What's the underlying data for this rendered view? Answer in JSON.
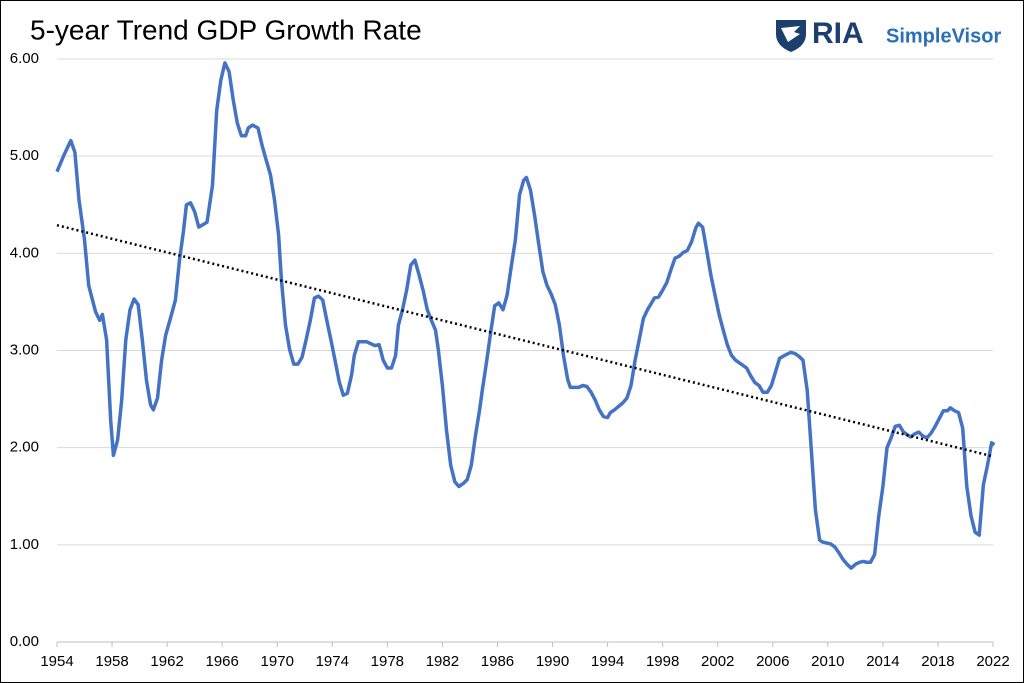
{
  "chart_data": {
    "type": "line",
    "title": "5-year Trend GDP Growth Rate",
    "logo": {
      "brand": "RIA",
      "product": "SimpleVisor"
    },
    "xlim": [
      1954,
      2022
    ],
    "xticks": [
      1954,
      1958,
      1962,
      1966,
      1970,
      1974,
      1978,
      1982,
      1986,
      1990,
      1994,
      1998,
      2002,
      2006,
      2010,
      2014,
      2018,
      2022
    ],
    "ylim": [
      0,
      6
    ],
    "yticks": [
      {
        "value": 0,
        "label": "0.00"
      },
      {
        "value": 1,
        "label": "1.00"
      },
      {
        "value": 2,
        "label": "2.00"
      },
      {
        "value": 3,
        "label": "3.00"
      },
      {
        "value": 4,
        "label": "4.00"
      },
      {
        "value": 5,
        "label": "5.00"
      },
      {
        "value": 6,
        "label": "6.00"
      }
    ],
    "grid": true,
    "series": [
      {
        "color": "#4472c4",
        "style": "solid",
        "x": [
          1954.0,
          1954.5,
          1955.0,
          1955.3,
          1955.6,
          1956.0,
          1956.3,
          1956.8,
          1957.1,
          1957.3,
          1957.6,
          1957.9,
          1958.1,
          1958.4,
          1958.7,
          1959.0,
          1959.3,
          1959.6,
          1959.9,
          1960.2,
          1960.5,
          1960.8,
          1961.0,
          1961.3,
          1961.6,
          1961.9,
          1962.2,
          1962.6,
          1962.9,
          1963.2,
          1963.4,
          1963.7,
          1964.0,
          1964.3,
          1964.9,
          1965.3,
          1965.6,
          1965.9,
          1966.2,
          1966.5,
          1966.8,
          1967.1,
          1967.4,
          1967.7,
          1967.9,
          1968.2,
          1968.6,
          1968.9,
          1969.2,
          1969.5,
          1969.8,
          1970.1,
          1970.3,
          1970.6,
          1970.9,
          1971.2,
          1971.5,
          1971.8,
          1972.1,
          1972.4,
          1972.7,
          1973.0,
          1973.3,
          1973.6,
          1973.9,
          1974.2,
          1974.5,
          1974.8,
          1975.1,
          1975.4,
          1975.6,
          1975.9,
          1976.5,
          1977.1,
          1977.4,
          1977.7,
          1978.0,
          1978.3,
          1978.6,
          1978.8,
          1979.1,
          1979.4,
          1979.7,
          1980.0,
          1980.3,
          1980.6,
          1980.9,
          1981.2,
          1981.5,
          1981.7,
          1982.0,
          1982.3,
          1982.6,
          1982.9,
          1983.2,
          1983.5,
          1983.8,
          1984.1,
          1984.4,
          1984.7,
          1984.9,
          1985.2,
          1985.5,
          1985.8,
          1986.1,
          1986.4,
          1986.7,
          1987.0,
          1987.3,
          1987.6,
          1987.9,
          1988.1,
          1988.4,
          1988.7,
          1989.0,
          1989.3,
          1989.6,
          1989.9,
          1990.2,
          1990.5,
          1990.8,
          1991.1,
          1991.3,
          1991.9,
          1992.2,
          1992.5,
          1992.8,
          1993.1,
          1993.4,
          1993.7,
          1994.0,
          1994.2,
          1994.5,
          1995.1,
          1995.4,
          1995.7,
          1996.0,
          1996.3,
          1996.6,
          1996.9,
          1997.2,
          1997.4,
          1997.7,
          1998.0,
          1998.3,
          1998.6,
          1998.9,
          1999.2,
          1999.5,
          1999.8,
          2000.1,
          2000.4,
          2000.6,
          2000.9,
          2001.2,
          2001.5,
          2001.8,
          2002.1,
          2002.4,
          2002.7,
          2003.0,
          2003.3,
          2003.8,
          2004.1,
          2004.4,
          2004.7,
          2005.0,
          2005.3,
          2005.6,
          2005.9,
          2006.2,
          2006.5,
          2007.0,
          2007.3,
          2007.6,
          2007.9,
          2008.2,
          2008.5,
          2008.8,
          2009.1,
          2009.4,
          2009.6,
          2009.9,
          2010.2,
          2010.5,
          2010.8,
          2011.1,
          2011.4,
          2011.7,
          2012.0,
          2012.3,
          2012.6,
          2012.8,
          2013.1,
          2013.4,
          2013.7,
          2014.0,
          2014.3,
          2014.6,
          2014.9,
          2015.2,
          2015.5,
          2015.8,
          2016.0,
          2016.3,
          2016.6,
          2016.9,
          2017.2,
          2017.5,
          2017.8,
          2018.1,
          2018.4,
          2018.7,
          2018.9,
          2019.2,
          2019.5,
          2019.8,
          2020.1,
          2020.4,
          2020.7,
          2021.0,
          2021.3,
          2021.6,
          2021.9,
          2022.1
        ],
        "values": [
          4.84,
          5.01,
          5.16,
          5.04,
          4.55,
          4.14,
          3.67,
          3.4,
          3.31,
          3.37,
          3.11,
          2.28,
          1.92,
          2.08,
          2.49,
          3.11,
          3.42,
          3.53,
          3.47,
          3.11,
          2.69,
          2.44,
          2.39,
          2.51,
          2.9,
          3.16,
          3.31,
          3.52,
          3.93,
          4.24,
          4.5,
          4.52,
          4.43,
          4.27,
          4.32,
          4.7,
          5.47,
          5.78,
          5.96,
          5.87,
          5.58,
          5.34,
          5.21,
          5.21,
          5.29,
          5.32,
          5.29,
          5.11,
          4.96,
          4.81,
          4.55,
          4.19,
          3.73,
          3.26,
          3.01,
          2.86,
          2.86,
          2.93,
          3.11,
          3.31,
          3.54,
          3.56,
          3.52,
          3.31,
          3.11,
          2.9,
          2.68,
          2.54,
          2.56,
          2.75,
          2.95,
          3.09,
          3.09,
          3.05,
          3.06,
          2.9,
          2.82,
          2.82,
          2.95,
          3.26,
          3.42,
          3.62,
          3.88,
          3.93,
          3.78,
          3.62,
          3.42,
          3.31,
          3.21,
          3.01,
          2.64,
          2.18,
          1.82,
          1.65,
          1.6,
          1.63,
          1.67,
          1.82,
          2.12,
          2.39,
          2.59,
          2.88,
          3.18,
          3.46,
          3.49,
          3.42,
          3.57,
          3.86,
          4.14,
          4.6,
          4.75,
          4.78,
          4.65,
          4.39,
          4.09,
          3.81,
          3.67,
          3.58,
          3.47,
          3.26,
          2.95,
          2.7,
          2.62,
          2.62,
          2.64,
          2.63,
          2.57,
          2.49,
          2.39,
          2.32,
          2.31,
          2.36,
          2.39,
          2.46,
          2.51,
          2.64,
          2.9,
          3.11,
          3.33,
          3.42,
          3.49,
          3.54,
          3.55,
          3.62,
          3.7,
          3.83,
          3.95,
          3.97,
          4.01,
          4.03,
          4.12,
          4.26,
          4.31,
          4.27,
          4.03,
          3.78,
          3.57,
          3.37,
          3.21,
          3.06,
          2.95,
          2.9,
          2.85,
          2.82,
          2.74,
          2.67,
          2.64,
          2.57,
          2.57,
          2.64,
          2.78,
          2.92,
          2.96,
          2.98,
          2.97,
          2.94,
          2.9,
          2.59,
          1.98,
          1.36,
          1.05,
          1.03,
          1.02,
          1.01,
          0.98,
          0.92,
          0.85,
          0.8,
          0.76,
          0.8,
          0.82,
          0.83,
          0.82,
          0.82,
          0.9,
          1.3,
          1.6,
          2.0,
          2.1,
          2.22,
          2.23,
          2.16,
          2.13,
          2.11,
          2.14,
          2.16,
          2.12,
          2.1,
          2.15,
          2.22,
          2.3,
          2.38,
          2.38,
          2.41,
          2.38,
          2.36,
          2.2,
          1.6,
          1.3,
          1.13,
          1.1,
          1.62,
          1.82,
          2.05,
          2.03
        ]
      },
      {
        "color": "#000000",
        "style": "dotted",
        "x": [
          1954,
          2022
        ],
        "values": [
          4.29,
          1.91
        ]
      }
    ]
  }
}
